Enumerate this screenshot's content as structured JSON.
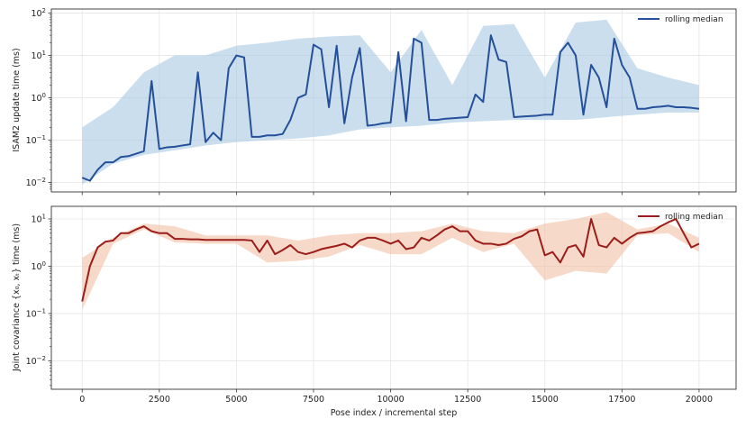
{
  "chart_data": [
    {
      "type": "line",
      "ylabel": "ISAM2 update time (ms)",
      "xlabel": "",
      "yscale": "log",
      "ylim": [
        0.006,
        125
      ],
      "xlim": [
        -1000,
        21200
      ],
      "grid": true,
      "legend": {
        "position": "top-right",
        "entries": [
          "rolling median"
        ]
      },
      "colors": {
        "median": "#24509a",
        "raw": "#a9c8e2"
      },
      "x_start": 0,
      "x_step": 250,
      "rolling_median": [
        0.013,
        0.011,
        0.02,
        0.03,
        0.03,
        0.04,
        0.042,
        0.048,
        0.055,
        2.5,
        0.062,
        0.068,
        0.07,
        0.075,
        0.08,
        4,
        0.09,
        0.15,
        0.1,
        5,
        10,
        9,
        0.12,
        0.12,
        0.13,
        0.13,
        0.14,
        0.3,
        1,
        1.2,
        18,
        14,
        0.6,
        17,
        0.25,
        3,
        15,
        0.22,
        0.23,
        0.25,
        0.26,
        12,
        0.28,
        25,
        20,
        0.3,
        0.3,
        0.32,
        0.33,
        0.34,
        0.35,
        1.2,
        0.8,
        30,
        8,
        7,
        0.35,
        0.36,
        0.37,
        0.38,
        0.4,
        0.4,
        12,
        20,
        10,
        0.4,
        6,
        3,
        0.6,
        25,
        6,
        3,
        0.55,
        0.55,
        0.6,
        0.62,
        0.65,
        0.6,
        0.6,
        0.58,
        0.55
      ],
      "raw_x_step": 1000,
      "raw_upper": [
        0.2,
        0.6,
        4,
        10,
        10,
        17,
        20,
        25,
        28,
        30,
        4,
        40,
        2,
        50,
        55,
        3,
        60,
        70,
        5,
        3,
        2
      ],
      "raw_lower": [
        0.009,
        0.028,
        0.045,
        0.058,
        0.075,
        0.09,
        0.1,
        0.11,
        0.13,
        0.18,
        0.2,
        0.22,
        0.26,
        0.28,
        0.3,
        0.3,
        0.3,
        0.35,
        0.4,
        0.45,
        0.45
      ],
      "yticks": [
        {
          "base": "10",
          "exp": "−2",
          "v": 0.01
        },
        {
          "base": "10",
          "exp": "−1",
          "v": 0.1
        },
        {
          "base": "10",
          "exp": "0",
          "v": 1
        },
        {
          "base": "10",
          "exp": "1",
          "v": 10
        },
        {
          "base": "10",
          "exp": "2",
          "v": 100
        }
      ]
    },
    {
      "type": "line",
      "ylabel": "Joint covariance {x₀, xₜ} time (ms)",
      "xlabel": "Pose index / incremental step",
      "yscale": "log",
      "ylim": [
        0.0025,
        18.5
      ],
      "xlim": [
        -1000,
        21200
      ],
      "grid": true,
      "legend": {
        "position": "top-right",
        "entries": [
          "rolling median"
        ]
      },
      "colors": {
        "median": "#9b1d1a",
        "raw": "#f2bfa6"
      },
      "x_start": 0,
      "x_step": 250,
      "rolling_median": [
        0.18,
        1.0,
        2.5,
        3.3,
        3.5,
        5,
        5,
        6,
        7,
        5.5,
        5,
        5,
        3.8,
        3.8,
        3.7,
        3.7,
        3.6,
        3.6,
        3.6,
        3.6,
        3.6,
        3.6,
        3.5,
        2.0,
        3.5,
        1.8,
        2.2,
        2.8,
        2.0,
        1.8,
        2.0,
        2.3,
        2.5,
        2.7,
        3,
        2.5,
        3.5,
        4,
        4,
        3.5,
        3,
        3.5,
        2.3,
        2.5,
        4,
        3.5,
        4.5,
        6,
        7,
        5.5,
        5.5,
        3.5,
        3,
        3,
        2.8,
        3,
        3.8,
        4.3,
        5.5,
        6,
        1.7,
        2.0,
        1.2,
        2.5,
        2.8,
        1.6,
        10,
        2.8,
        2.5,
        4,
        3,
        4,
        5,
        5.2,
        5.5,
        7,
        8.5,
        10,
        5,
        2.5,
        3
      ],
      "raw_x_step": 1000,
      "raw_upper": [
        1.5,
        4,
        8,
        7,
        4.5,
        4.5,
        4.5,
        3.5,
        4.5,
        5,
        5,
        5.5,
        8,
        5.5,
        5,
        8,
        10,
        14,
        6,
        8,
        4
      ],
      "raw_lower": [
        0.12,
        3,
        6,
        3.2,
        3,
        3,
        1.2,
        1.3,
        1.6,
        2.8,
        1.8,
        1.8,
        4,
        2,
        3,
        0.5,
        0.8,
        0.7,
        4.5,
        5,
        2
      ],
      "yticks": [
        {
          "base": "10",
          "exp": "−2",
          "v": 0.01
        },
        {
          "base": "10",
          "exp": "−1",
          "v": 0.1
        },
        {
          "base": "10",
          "exp": "0",
          "v": 1
        },
        {
          "base": "10",
          "exp": "1",
          "v": 10
        }
      ]
    }
  ],
  "xticks": [
    0,
    2500,
    5000,
    7500,
    10000,
    12500,
    15000,
    17500,
    20000
  ]
}
